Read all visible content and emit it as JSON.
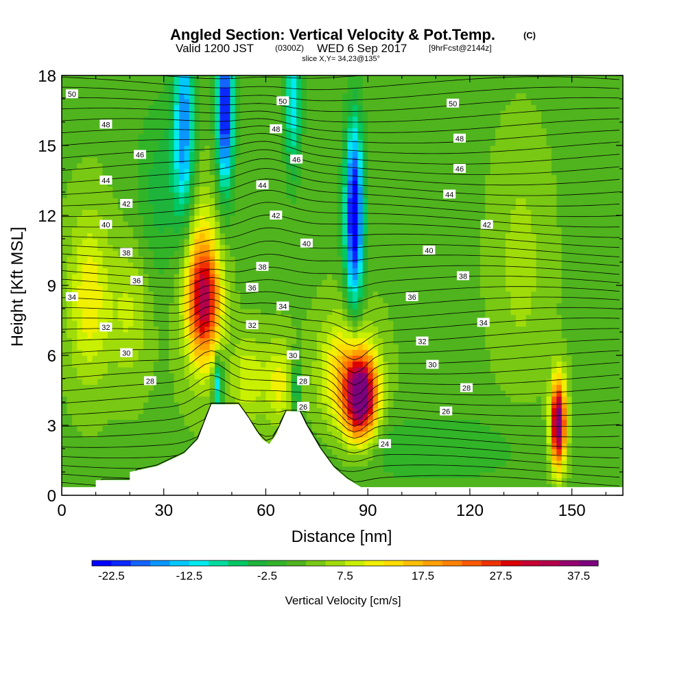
{
  "chart_data": {
    "type": "heatmap",
    "title": "Angled Section: Vertical Velocity & Pot.Temp.",
    "title_unit": "(C)",
    "subtitle": {
      "part1": "Valid 1200 JST",
      "part2": "(0300Z)",
      "part3": "WED 6 Sep 2017",
      "part4": "[9hrFcst@2144z]"
    },
    "slice_label": "slice X,Y= 34,23@135°",
    "xlabel": "Distance [nm]",
    "ylabel": "Height [Kft MSL]",
    "xlim": [
      0,
      165
    ],
    "ylim": [
      0,
      18
    ],
    "x_ticks": [
      "0",
      "30",
      "60",
      "90",
      "120",
      "150"
    ],
    "x_tick_values": [
      0,
      30,
      60,
      90,
      120,
      150
    ],
    "y_ticks": [
      "0",
      "3",
      "6",
      "9",
      "12",
      "15",
      "18"
    ],
    "y_tick_values": [
      0,
      3,
      6,
      9,
      12,
      15,
      18
    ],
    "colorbar": {
      "label": "Vertical Velocity [cm/s]",
      "tick_labels": [
        "-22.5",
        "-12.5",
        "-2.5",
        "7.5",
        "17.5",
        "27.5",
        "37.5"
      ],
      "tick_values": [
        -22.5,
        -12.5,
        -2.5,
        7.5,
        17.5,
        27.5,
        37.5
      ],
      "range": [
        -25,
        40
      ],
      "step": 2.5,
      "colors": [
        "#0000ff",
        "#0a28ff",
        "#1464ff",
        "#0a96ff",
        "#00c8ff",
        "#00eaf0",
        "#00dca0",
        "#00c864",
        "#1eb43c",
        "#32b428",
        "#50b41e",
        "#78c814",
        "#a0dc0a",
        "#c8f000",
        "#f0f000",
        "#ffdc00",
        "#ffbe00",
        "#ffa000",
        "#ff8200",
        "#ff5a00",
        "#f03200",
        "#dc0000",
        "#c80032",
        "#b4004b",
        "#96006e",
        "#7d007d"
      ]
    },
    "theta_labels": [
      {
        "x": 3,
        "z": 17.2,
        "text": "50"
      },
      {
        "x": 65,
        "z": 16.9,
        "text": "50"
      },
      {
        "x": 115,
        "z": 16.8,
        "text": "50"
      },
      {
        "x": 13,
        "z": 15.9,
        "text": "48"
      },
      {
        "x": 63,
        "z": 15.7,
        "text": "48"
      },
      {
        "x": 117,
        "z": 15.3,
        "text": "48"
      },
      {
        "x": 23,
        "z": 14.6,
        "text": "46"
      },
      {
        "x": 69,
        "z": 14.4,
        "text": "46"
      },
      {
        "x": 117,
        "z": 14.0,
        "text": "46"
      },
      {
        "x": 13,
        "z": 13.5,
        "text": "44"
      },
      {
        "x": 59,
        "z": 13.3,
        "text": "44"
      },
      {
        "x": 114,
        "z": 12.9,
        "text": "44"
      },
      {
        "x": 19,
        "z": 12.5,
        "text": "42"
      },
      {
        "x": 63,
        "z": 12.0,
        "text": "42"
      },
      {
        "x": 125,
        "z": 11.6,
        "text": "42"
      },
      {
        "x": 13,
        "z": 11.6,
        "text": "40"
      },
      {
        "x": 72,
        "z": 10.8,
        "text": "40"
      },
      {
        "x": 108,
        "z": 10.5,
        "text": "40"
      },
      {
        "x": 19,
        "z": 10.4,
        "text": "38"
      },
      {
        "x": 59,
        "z": 9.8,
        "text": "38"
      },
      {
        "x": 118,
        "z": 9.4,
        "text": "38"
      },
      {
        "x": 22,
        "z": 9.2,
        "text": "36"
      },
      {
        "x": 56,
        "z": 8.9,
        "text": "36"
      },
      {
        "x": 103,
        "z": 8.5,
        "text": "36"
      },
      {
        "x": 3,
        "z": 8.5,
        "text": "34"
      },
      {
        "x": 65,
        "z": 8.1,
        "text": "34"
      },
      {
        "x": 124,
        "z": 7.4,
        "text": "34"
      },
      {
        "x": 13,
        "z": 7.2,
        "text": "32"
      },
      {
        "x": 56,
        "z": 7.3,
        "text": "32"
      },
      {
        "x": 106,
        "z": 6.6,
        "text": "32"
      },
      {
        "x": 19,
        "z": 6.1,
        "text": "30"
      },
      {
        "x": 68,
        "z": 6.0,
        "text": "30"
      },
      {
        "x": 109,
        "z": 5.6,
        "text": "30"
      },
      {
        "x": 26,
        "z": 4.9,
        "text": "28"
      },
      {
        "x": 71,
        "z": 4.9,
        "text": "28"
      },
      {
        "x": 119,
        "z": 4.6,
        "text": "28"
      },
      {
        "x": 71,
        "z": 3.8,
        "text": "26"
      },
      {
        "x": 113,
        "z": 3.6,
        "text": "26"
      },
      {
        "x": 95,
        "z": 2.2,
        "text": "24"
      }
    ]
  }
}
